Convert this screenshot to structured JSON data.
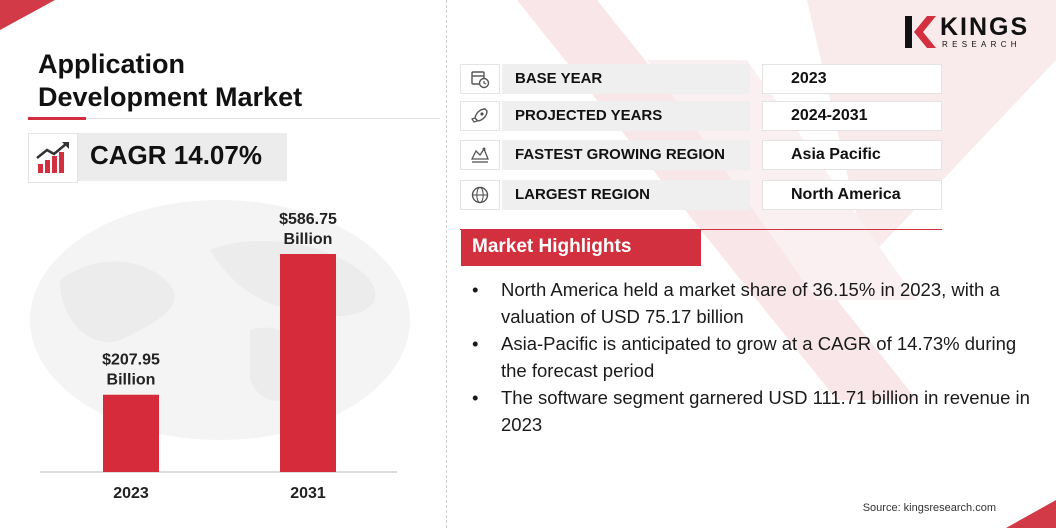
{
  "brand": {
    "name": "KINGS",
    "sub": "RESEARCH"
  },
  "title": {
    "line1": "Application",
    "line2": "Development Market"
  },
  "cagr": {
    "label": "CAGR 14.07%"
  },
  "info_rows": [
    {
      "icon": "calendar-clock-icon",
      "label": "BASE YEAR",
      "value": "2023"
    },
    {
      "icon": "rocket-icon",
      "label": "PROJECTED YEARS",
      "value": "2024-2031"
    },
    {
      "icon": "map-region-icon",
      "label": "FASTEST GROWING REGION",
      "value": "Asia Pacific"
    },
    {
      "icon": "globe-icon",
      "label": "LARGEST REGION",
      "value": "North America"
    }
  ],
  "highlights": {
    "title": "Market Highlights",
    "items": [
      "North America held a market share of 36.15% in 2023, with a valuation of USD 75.17 billion",
      "Asia-Pacific is anticipated to grow at a CAGR of 14.73% during the forecast period",
      "The software segment garnered USD 111.71 billion in revenue in 2023"
    ],
    "bullet": "•"
  },
  "source": "Source: kingsresearch.com",
  "colors": {
    "accent": "#d2303f",
    "bar": "#d62b3b"
  },
  "chart_data": {
    "type": "bar",
    "categories": [
      "2023",
      "2031"
    ],
    "values": [
      207.95,
      586.75
    ],
    "value_labels": [
      [
        "$207.95",
        "Billion"
      ],
      [
        "$586.75",
        "Billion"
      ]
    ],
    "title": "",
    "xlabel": "",
    "ylabel": "",
    "ylim": [
      0,
      586.75
    ],
    "grid": false
  }
}
